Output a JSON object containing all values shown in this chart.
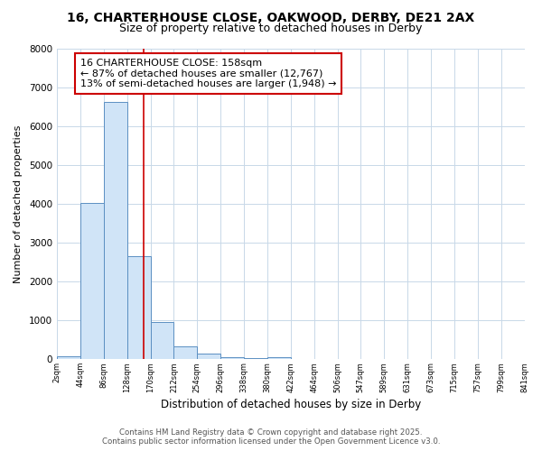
{
  "title_line1": "16, CHARTERHOUSE CLOSE, OAKWOOD, DERBY, DE21 2AX",
  "title_line2": "Size of property relative to detached houses in Derby",
  "xlabel": "Distribution of detached houses by size in Derby",
  "ylabel": "Number of detached properties",
  "bar_edges": [
    2,
    44,
    86,
    128,
    170,
    212,
    254,
    296,
    338,
    380,
    422,
    464,
    506,
    547,
    589,
    631,
    673,
    715,
    757,
    799,
    841
  ],
  "bar_heights": [
    70,
    4020,
    6620,
    2650,
    970,
    340,
    140,
    55,
    40,
    55,
    0,
    0,
    0,
    0,
    0,
    0,
    0,
    0,
    0,
    0
  ],
  "bar_color": "#d0e4f7",
  "bar_edge_color": "#5b8fc2",
  "red_line_x": 158,
  "ylim": [
    0,
    8000
  ],
  "annotation_text": "16 CHARTERHOUSE CLOSE: 158sqm\n← 87% of detached houses are smaller (12,767)\n13% of semi-detached houses are larger (1,948) →",
  "annotation_box_color": "#ffffff",
  "annotation_box_edge_color": "#cc0000",
  "red_line_color": "#cc0000",
  "footer_line1": "Contains HM Land Registry data © Crown copyright and database right 2025.",
  "footer_line2": "Contains public sector information licensed under the Open Government Licence v3.0.",
  "tick_labels": [
    "2sqm",
    "44sqm",
    "86sqm",
    "128sqm",
    "170sqm",
    "212sqm",
    "254sqm",
    "296sqm",
    "338sqm",
    "380sqm",
    "422sqm",
    "464sqm",
    "506sqm",
    "547sqm",
    "589sqm",
    "631sqm",
    "673sqm",
    "715sqm",
    "757sqm",
    "799sqm",
    "841sqm"
  ],
  "grid_color": "#c8d8e8",
  "background_color": "#ffffff",
  "fig_width": 6.0,
  "fig_height": 5.0,
  "dpi": 100
}
